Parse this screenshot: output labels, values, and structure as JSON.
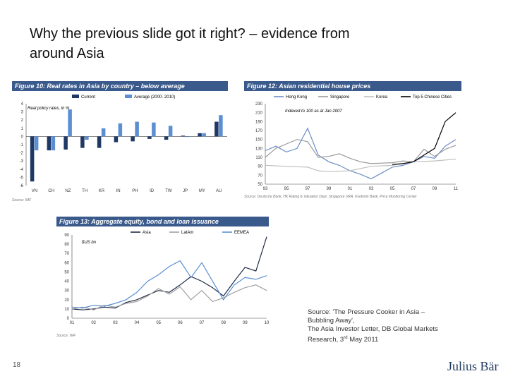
{
  "slide": {
    "title_line1": "Why the previous slide got it right? – evidence from",
    "title_line2": "around Asia",
    "page_number": "18",
    "logo_text": "Julius Bär",
    "source_line1": "Source: 'The Pressure Cooker in Asia –",
    "source_line2": "Bubbling Away',",
    "source_line3": "The Asia Investor Letter, DB Global Markets",
    "source_line4_a": "Research, 3",
    "source_line4_sup": "rd",
    "source_line4_b": " May 2011"
  },
  "colors": {
    "header_bar": "#3a5a8c",
    "current": "#1f3864",
    "average": "#5b8fd1"
  },
  "chart_data": [
    {
      "type": "bar",
      "title": "Figure 10: Real rates in Asia by country – below average",
      "annotation": "Real policy rates, in %",
      "source": "Source: IMF",
      "categories": [
        "VN",
        "CH",
        "NZ",
        "TH",
        "KR",
        "IN",
        "PH",
        "ID",
        "TW",
        "JP",
        "MY",
        "AU"
      ],
      "series": [
        {
          "name": "Current",
          "color": "#1f3864",
          "values": [
            -5.5,
            -1.7,
            -1.6,
            -1.4,
            -1.4,
            -0.7,
            -0.6,
            -0.3,
            -0.4,
            0.1,
            0.4,
            1.8
          ]
        },
        {
          "name": "Average (2000- 2010)",
          "color": "#5b8fd1",
          "values": [
            -1.7,
            -1.7,
            3.3,
            -0.4,
            1.0,
            1.6,
            1.8,
            1.7,
            1.3,
            0.0,
            0.4,
            2.6
          ]
        }
      ],
      "ylim": [
        -6,
        4
      ],
      "yticks": [
        4,
        3,
        2,
        1,
        0,
        -1,
        -2,
        -3,
        -4,
        -5,
        -6
      ]
    },
    {
      "type": "line",
      "title": "Figure 12: Asian residential house prices",
      "annotation": "Indexed to 100 as at Jan 2007",
      "source": "Source: Deutsche Bank, HK Rating & Valuation Dept, Singapore URA, Kookmin Bank, Price Monitoring Center",
      "xticks": [
        "93",
        "95",
        "97",
        "99",
        "01",
        "03",
        "05",
        "07",
        "09",
        "11"
      ],
      "yticks": [
        230,
        210,
        190,
        170,
        150,
        130,
        110,
        90,
        70,
        50
      ],
      "ylim": [
        50,
        230
      ],
      "series": [
        {
          "name": "Hong Kong",
          "color": "#6a8cc7",
          "points": [
            [
              1993,
              125
            ],
            [
              1994,
              135
            ],
            [
              1995,
              122
            ],
            [
              1996,
              130
            ],
            [
              1997,
              175
            ],
            [
              1998,
              115
            ],
            [
              1999,
              100
            ],
            [
              2000,
              92
            ],
            [
              2001,
              80
            ],
            [
              2002,
              72
            ],
            [
              2003,
              62
            ],
            [
              2004,
              75
            ],
            [
              2005,
              88
            ],
            [
              2006,
              92
            ],
            [
              2007,
              100
            ],
            [
              2008,
              112
            ],
            [
              2009,
              108
            ],
            [
              2010,
              135
            ],
            [
              2011,
              150
            ]
          ]
        },
        {
          "name": "Singapore",
          "color": "#9a9a9a",
          "points": [
            [
              1993,
              110
            ],
            [
              1994,
              130
            ],
            [
              1995,
              140
            ],
            [
              1996,
              150
            ],
            [
              1997,
              145
            ],
            [
              1998,
              110
            ],
            [
              1999,
              112
            ],
            [
              2000,
              118
            ],
            [
              2001,
              108
            ],
            [
              2002,
              100
            ],
            [
              2003,
              96
            ],
            [
              2004,
              97
            ],
            [
              2005,
              98
            ],
            [
              2006,
              102
            ],
            [
              2007,
              100
            ],
            [
              2008,
              128
            ],
            [
              2009,
              112
            ],
            [
              2010,
              128
            ],
            [
              2011,
              137
            ]
          ]
        },
        {
          "name": "Korea",
          "color": "#c0c0c0",
          "points": [
            [
              1993,
              92
            ],
            [
              1995,
              90
            ],
            [
              1997,
              88
            ],
            [
              1998,
              80
            ],
            [
              1999,
              78
            ],
            [
              2001,
              80
            ],
            [
              2003,
              90
            ],
            [
              2005,
              92
            ],
            [
              2007,
              100
            ],
            [
              2009,
              102
            ],
            [
              2011,
              106
            ]
          ]
        },
        {
          "name": "Top 5 Chinese Cities",
          "color": "#000000",
          "points": [
            [
              2005,
              94
            ],
            [
              2006,
              96
            ],
            [
              2007,
              100
            ],
            [
              2008,
              115
            ],
            [
              2009,
              130
            ],
            [
              2010,
              190
            ],
            [
              2011,
              210
            ]
          ]
        }
      ]
    },
    {
      "type": "line",
      "title": "Figure 13: Aggregate equity, bond and loan issuance",
      "annotation": "$US bn",
      "source": "Source: IMF",
      "xticks": [
        "01",
        "02",
        "03",
        "04",
        "05",
        "06",
        "07",
        "08",
        "09",
        "10"
      ],
      "yticks": [
        90,
        80,
        70,
        60,
        50,
        40,
        30,
        20,
        10,
        0
      ],
      "ylim": [
        0,
        90
      ],
      "series": [
        {
          "name": "Asia",
          "color": "#1f2a44",
          "points": [
            [
              2001,
              10
            ],
            [
              2001.5,
              9
            ],
            [
              2002,
              10
            ],
            [
              2002.5,
              12
            ],
            [
              2003,
              11
            ],
            [
              2003.5,
              17
            ],
            [
              2004,
              20
            ],
            [
              2004.5,
              25
            ],
            [
              2005,
              30
            ],
            [
              2005.5,
              28
            ],
            [
              2006,
              36
            ],
            [
              2006.5,
              45
            ],
            [
              2007,
              40
            ],
            [
              2007.5,
              33
            ],
            [
              2008,
              24
            ],
            [
              2008.5,
              40
            ],
            [
              2009,
              55
            ],
            [
              2009.5,
              51
            ],
            [
              2010,
              88
            ]
          ]
        },
        {
          "name": "LatAm",
          "color": "#a0a0a0",
          "points": [
            [
              2001,
              10
            ],
            [
              2001.5,
              12
            ],
            [
              2002,
              9
            ],
            [
              2002.5,
              14
            ],
            [
              2003,
              12
            ],
            [
              2003.5,
              16
            ],
            [
              2004,
              18
            ],
            [
              2004.5,
              24
            ],
            [
              2005,
              32
            ],
            [
              2005.5,
              26
            ],
            [
              2006,
              34
            ],
            [
              2006.5,
              20
            ],
            [
              2007,
              30
            ],
            [
              2007.5,
              18
            ],
            [
              2008,
              22
            ],
            [
              2008.5,
              28
            ],
            [
              2009,
              33
            ],
            [
              2009.5,
              36
            ],
            [
              2010,
              30
            ]
          ]
        },
        {
          "name": "EEMEA",
          "color": "#5b8fd1",
          "points": [
            [
              2001,
              12
            ],
            [
              2001.5,
              11
            ],
            [
              2002,
              14
            ],
            [
              2002.5,
              13
            ],
            [
              2003,
              16
            ],
            [
              2003.5,
              20
            ],
            [
              2004,
              28
            ],
            [
              2004.5,
              40
            ],
            [
              2005,
              47
            ],
            [
              2005.5,
              56
            ],
            [
              2006,
              62
            ],
            [
              2006.5,
              44
            ],
            [
              2007,
              60
            ],
            [
              2007.5,
              40
            ],
            [
              2008,
              20
            ],
            [
              2008.5,
              36
            ],
            [
              2009,
              44
            ],
            [
              2009.5,
              42
            ],
            [
              2010,
              46
            ]
          ]
        }
      ]
    }
  ]
}
